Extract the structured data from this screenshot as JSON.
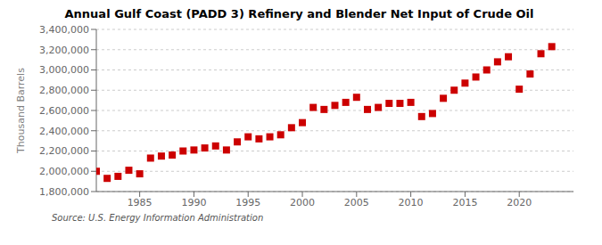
{
  "chart_data": {
    "type": "scatter",
    "title": "Annual Gulf Coast (PADD 3) Refinery and Blender Net Input of Crude Oil",
    "y_label": "Thousand Barrels",
    "annotations": [
      "Source: U.S. Energy Information Administration"
    ],
    "x": [
      1981,
      1982,
      1983,
      1984,
      1985,
      1986,
      1987,
      1988,
      1989,
      1990,
      1991,
      1992,
      1993,
      1994,
      1995,
      1996,
      1997,
      1998,
      1999,
      2000,
      2001,
      2002,
      2003,
      2004,
      2005,
      2006,
      2007,
      2008,
      2009,
      2010,
      2011,
      2012,
      2013,
      2014,
      2015,
      2016,
      2017,
      2018,
      2019,
      2020,
      2021,
      2022,
      2023
    ],
    "values": [
      2000000,
      1930000,
      1950000,
      2010000,
      1975000,
      2130000,
      2150000,
      2160000,
      2200000,
      2210000,
      2230000,
      2250000,
      2210000,
      2290000,
      2340000,
      2320000,
      2340000,
      2360000,
      2430000,
      2480000,
      2630000,
      2610000,
      2650000,
      2680000,
      2730000,
      2610000,
      2630000,
      2670000,
      2670000,
      2680000,
      2540000,
      2570000,
      2720000,
      2800000,
      2870000,
      2930000,
      3000000,
      3080000,
      3130000,
      2810000,
      2960000,
      3160000,
      3230000
    ],
    "color": "#cc0000",
    "marker": "square",
    "xlim": [
      1981.0,
      2025.0
    ],
    "xticks": [
      1985,
      1990,
      1995,
      2000,
      2005,
      2010,
      2015,
      2020
    ],
    "ylim": [
      1800000,
      3400000
    ],
    "yticks": [
      {
        "value": 1800000,
        "label": "1,800,000"
      },
      {
        "value": 2000000,
        "label": "2,000,000"
      },
      {
        "value": 2200000,
        "label": "2,200,000"
      },
      {
        "value": 2400000,
        "label": "2,400,000"
      },
      {
        "value": 2600000,
        "label": "2,600,000"
      },
      {
        "value": 2800000,
        "label": "2,800,000"
      },
      {
        "value": 3000000,
        "label": "3,000,000"
      },
      {
        "value": 3200000,
        "label": "3,200,000"
      },
      {
        "value": 3400000,
        "label": "3,400,000"
      }
    ],
    "grid": "y"
  }
}
